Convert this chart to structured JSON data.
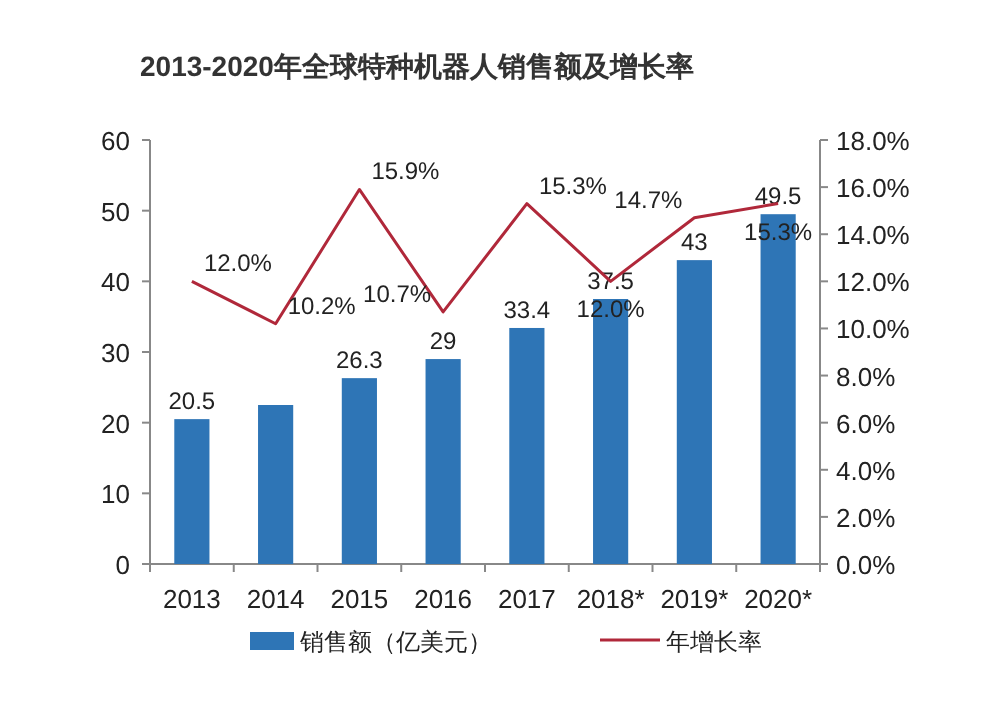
{
  "chart_data": {
    "type": "bar",
    "title": "2013-2020年全球特种机器人销售额及增长率",
    "categories": [
      "2013",
      "2014",
      "2015",
      "2016",
      "2017",
      "2018*",
      "2019*",
      "2020*"
    ],
    "series": [
      {
        "name": "销售额（亿美元）",
        "color": "#2e75b6",
        "values": [
          20.5,
          22.5,
          26.3,
          29,
          33.4,
          37.5,
          43,
          49.5
        ],
        "value_labels": [
          "20.5",
          null,
          "26.3",
          "29",
          "33.4",
          "37.5",
          "43",
          "49.5"
        ]
      },
      {
        "name": "年增长率",
        "type": "line",
        "axis": "y2",
        "color": "#b0283a",
        "values": [
          12.0,
          10.2,
          15.9,
          10.7,
          15.3,
          12.0,
          14.7,
          15.3
        ],
        "value_labels": [
          "12.0%",
          "10.2%",
          "15.9%",
          "10.7%",
          "15.3%",
          "12.0%",
          "14.7%",
          "15.3%"
        ]
      }
    ],
    "ylim": [
      0,
      60
    ],
    "yticks": [
      0,
      10,
      20,
      30,
      40,
      50,
      60
    ],
    "y2lim": [
      0,
      18
    ],
    "y2ticks": [
      {
        "value": 0,
        "label": "0.0%"
      },
      {
        "value": 2,
        "label": "2.0%"
      },
      {
        "value": 4,
        "label": "4.0%"
      },
      {
        "value": 6,
        "label": "6.0%"
      },
      {
        "value": 8,
        "label": "8.0%"
      },
      {
        "value": 10,
        "label": "10.0%"
      },
      {
        "value": 12,
        "label": "12.0%"
      },
      {
        "value": 14,
        "label": "14.0%"
      },
      {
        "value": 16,
        "label": "16.0%"
      },
      {
        "value": 18,
        "label": "18.0%"
      }
    ],
    "legend": "bottom",
    "grid": false
  }
}
